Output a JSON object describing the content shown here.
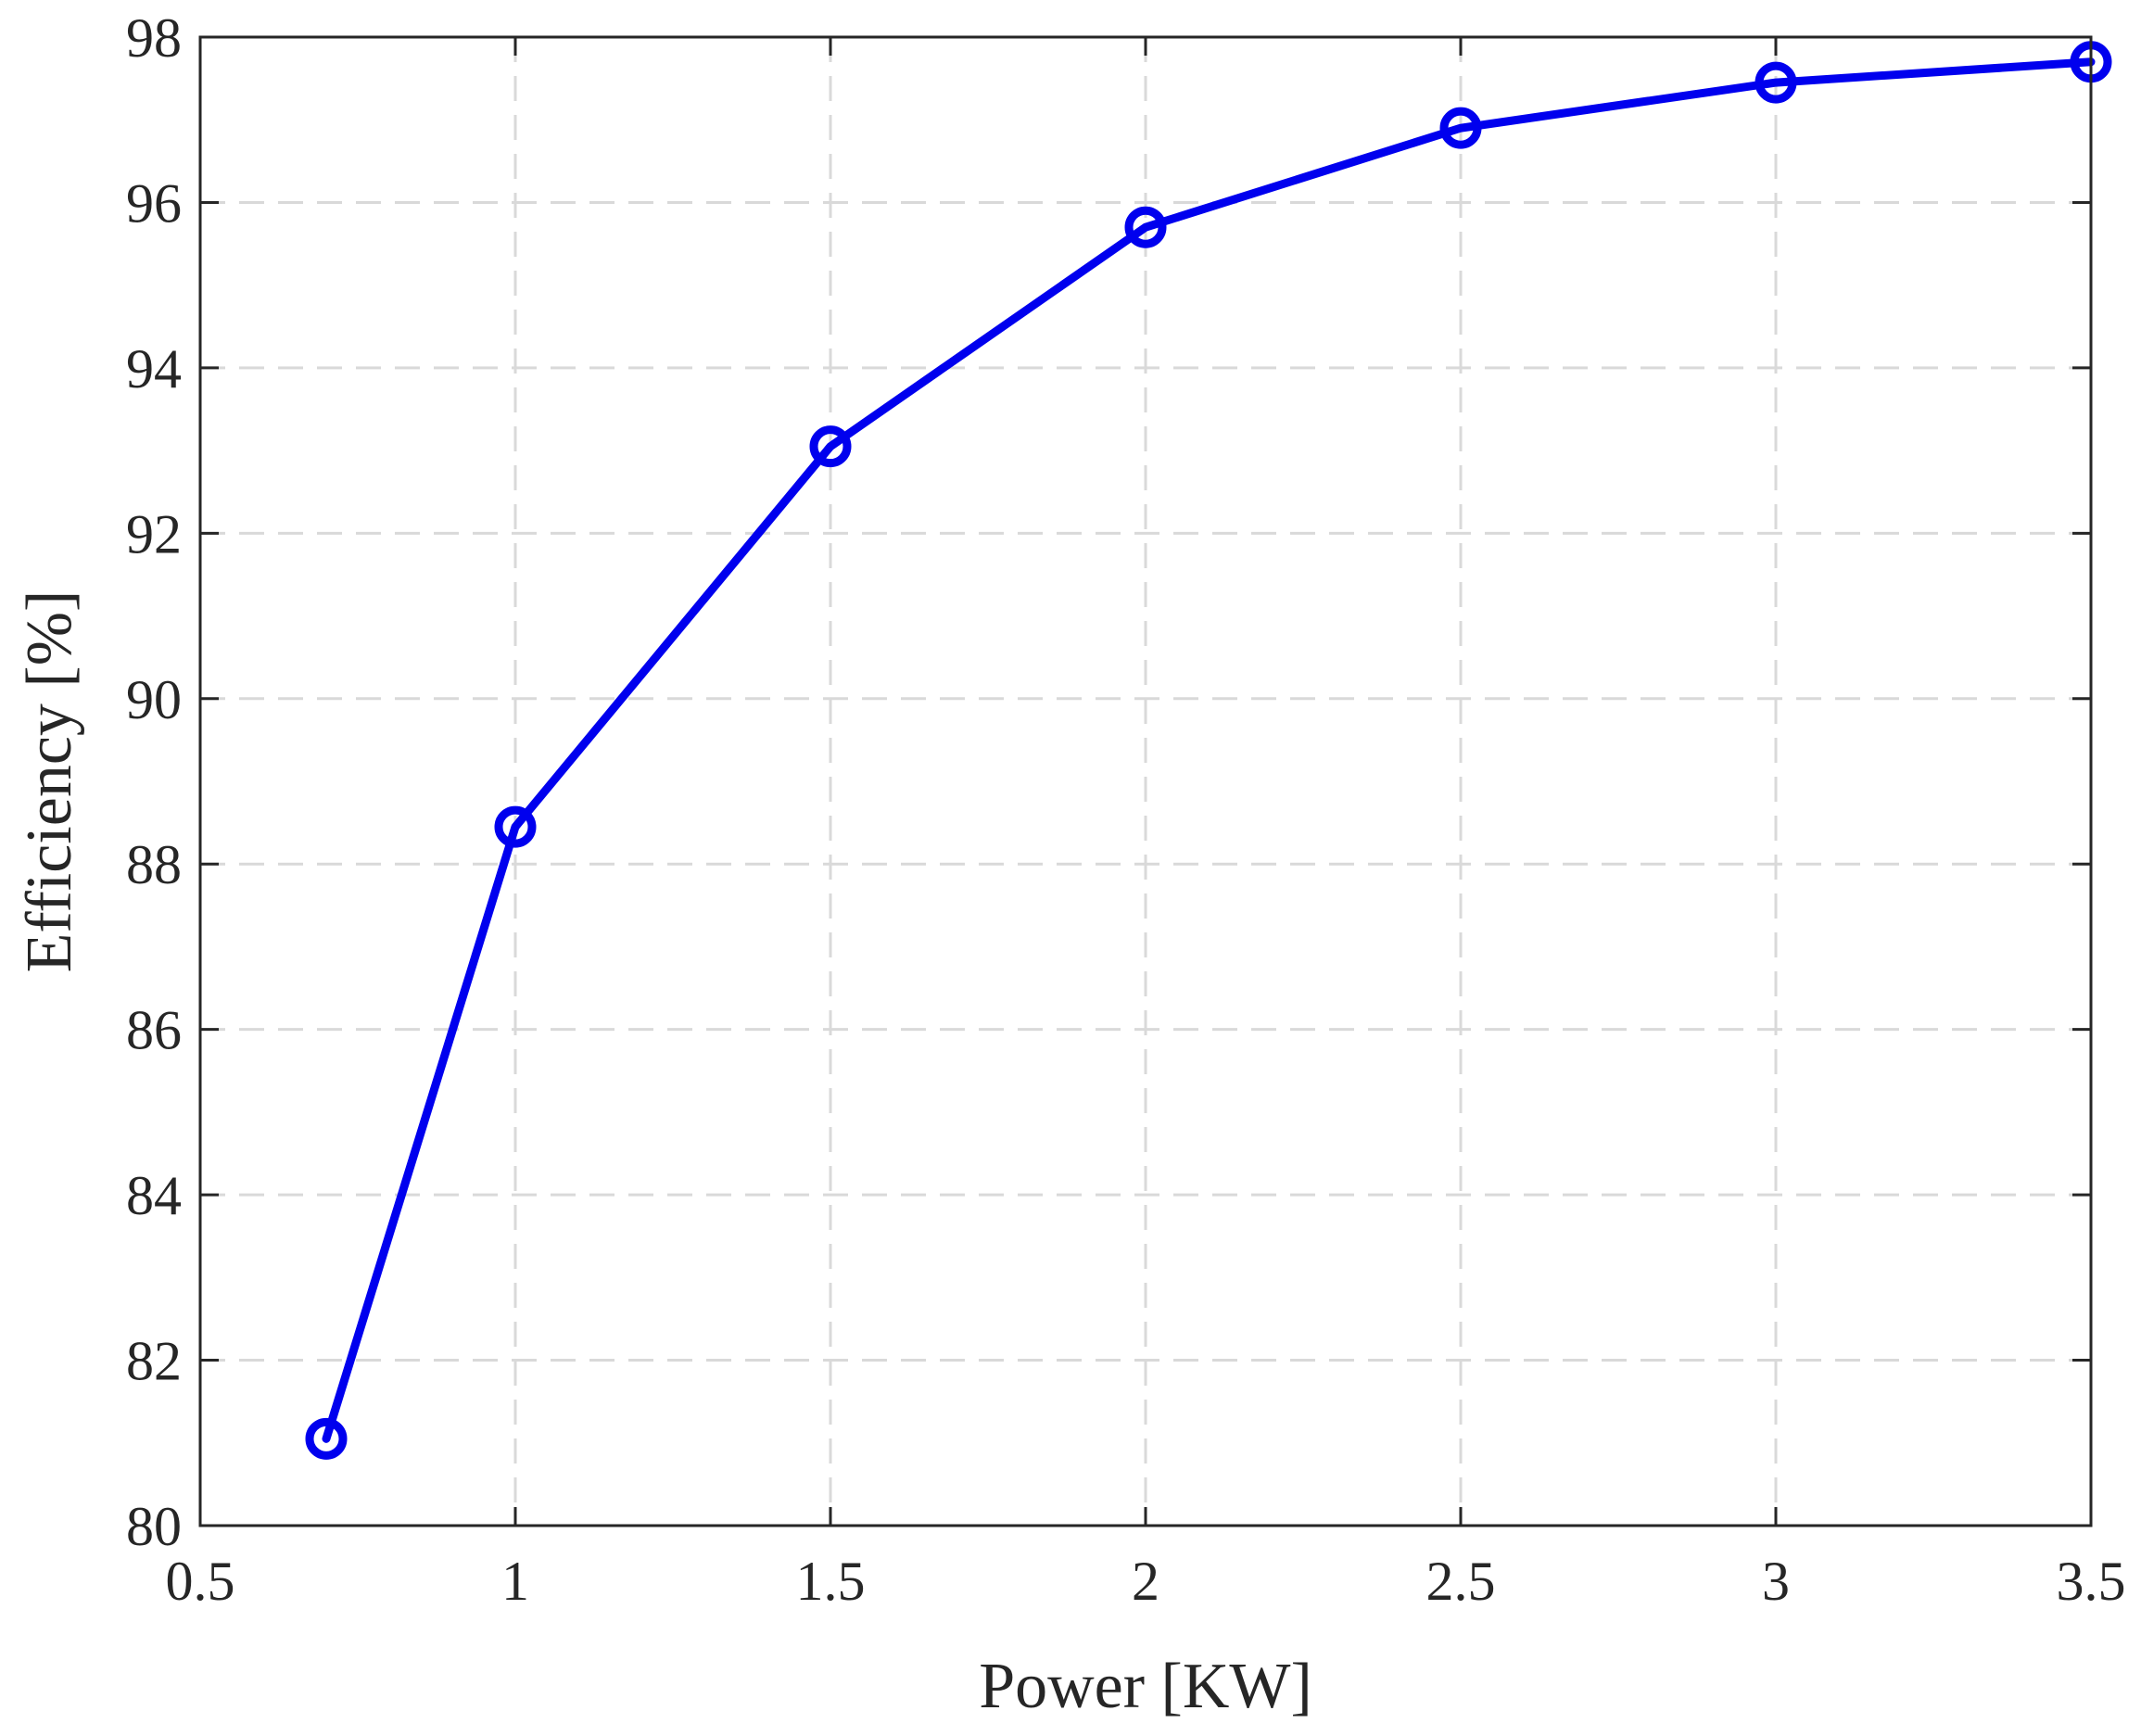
{
  "chart_data": {
    "type": "line",
    "title": "",
    "xlabel": "Power [KW]",
    "ylabel": "Efficiency [%]",
    "xlim": [
      0.5,
      3.5
    ],
    "ylim": [
      80,
      98
    ],
    "xticks": [
      0.5,
      1,
      1.5,
      2,
      2.5,
      3,
      3.5
    ],
    "xtick_labels": [
      "0.5",
      "1",
      "1.5",
      "2",
      "2.5",
      "3",
      "3.5"
    ],
    "yticks": [
      80,
      82,
      84,
      86,
      88,
      90,
      92,
      94,
      96,
      98
    ],
    "ytick_labels": [
      "80",
      "82",
      "84",
      "86",
      "88",
      "90",
      "92",
      "94",
      "96",
      "98"
    ],
    "grid": true,
    "grid_style": "dashed",
    "legend": "none",
    "series": [
      {
        "marker": "circle",
        "color": "#0000ee",
        "x": [
          0.7,
          1.0,
          1.5,
          2.0,
          2.5,
          3.0,
          3.5
        ],
        "y": [
          81.05,
          88.45,
          93.05,
          95.7,
          96.9,
          97.45,
          97.7
        ]
      }
    ]
  }
}
